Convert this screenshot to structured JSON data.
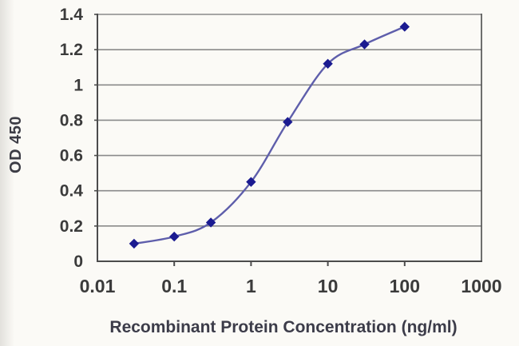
{
  "chart_data": {
    "type": "line",
    "title": "",
    "xlabel": "Recombinant Protein Concentration (ng/ml)",
    "ylabel": "OD 450",
    "x_scale": "log",
    "x": [
      0.03,
      0.1,
      0.3,
      1,
      3,
      10,
      30,
      100
    ],
    "series": [
      {
        "name": "OD 450",
        "values": [
          0.1,
          0.14,
          0.22,
          0.45,
          0.79,
          1.12,
          1.23,
          1.33
        ]
      }
    ],
    "xlim": [
      0.01,
      1000
    ],
    "ylim": [
      0,
      1.4
    ],
    "x_ticks": [
      "0.01",
      "0.1",
      "1",
      "10",
      "100",
      "1000"
    ],
    "x_tick_values": [
      0.01,
      0.1,
      1,
      10,
      100,
      1000
    ],
    "y_ticks": [
      "0",
      "0.2",
      "0.4",
      "0.6",
      "0.8",
      "1",
      "1.2",
      "1.4"
    ],
    "y_tick_values": [
      0,
      0.2,
      0.4,
      0.6,
      0.8,
      1,
      1.2,
      1.4
    ],
    "grid": "horizontal",
    "legend": "none",
    "marker": "diamond",
    "line_style": "smooth",
    "colors": {
      "background": "#fbfaf6",
      "line": "#5e5eab",
      "marker": "#1b1b91",
      "gridline": "#8a8a8a",
      "axis": "#4c4c4c",
      "tick_text": "#3b3b3b"
    }
  }
}
